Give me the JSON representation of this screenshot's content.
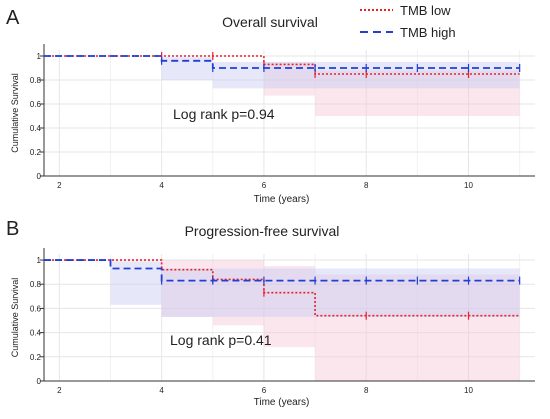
{
  "legend": {
    "entries": [
      {
        "label": "TMB low",
        "color": "#e8212b",
        "dash": "dotted"
      },
      {
        "label": "TMB high",
        "color": "#1f3fd6",
        "dash": "dashed"
      }
    ]
  },
  "colors": {
    "low": "#e8212b",
    "high": "#1f3fd6",
    "low_band": "#f4c7d4",
    "high_band": "#c7cdf5",
    "grid": "#e6e6e6",
    "axis": "#333333"
  },
  "chart_data": [
    {
      "panel": "A",
      "type": "line",
      "title": "Overall survival",
      "xlabel": "Time (years)",
      "ylabel": "Cumulative Survival",
      "xlim": [
        1.7,
        11.3
      ],
      "ylim": [
        0,
        1.05
      ],
      "xticks": [
        2,
        4,
        6,
        8,
        10
      ],
      "yticks": [
        0,
        0.2,
        0.4,
        0.6,
        0.8,
        1
      ],
      "ytick_labels": [
        "0",
        "0.2",
        "0.4",
        "0.6",
        "0.8",
        "1"
      ],
      "grid": true,
      "annotation": "Log rank p=0.94",
      "series": [
        {
          "name": "TMB low",
          "steps": [
            [
              1.7,
              1.0
            ],
            [
              6.0,
              0.93
            ],
            [
              7.0,
              0.85
            ],
            [
              11.0,
              0.85
            ]
          ],
          "censor_x": [
            4.0,
            5.0,
            6.0,
            7.0,
            8.0,
            10.0
          ],
          "ci_steps": [
            [
              1.7,
              1.0,
              1.0
            ],
            [
              6.0,
              0.67,
              0.95
            ],
            [
              7.0,
              0.5,
              0.88
            ],
            [
              11.0,
              0.5,
              0.88
            ]
          ]
        },
        {
          "name": "TMB high",
          "steps": [
            [
              1.7,
              1.0
            ],
            [
              4.0,
              0.96
            ],
            [
              5.0,
              0.9
            ],
            [
              11.0,
              0.9
            ]
          ],
          "censor_x": [
            4.0,
            5.0,
            6.0,
            7.0,
            8.0,
            9.0,
            10.0,
            11.0
          ],
          "ci_steps": [
            [
              1.7,
              1.0,
              1.0
            ],
            [
              4.0,
              0.8,
              0.99
            ],
            [
              5.0,
              0.73,
              0.95
            ],
            [
              11.0,
              0.73,
              0.95
            ]
          ]
        }
      ]
    },
    {
      "panel": "B",
      "type": "line",
      "title": "Progression-free survival",
      "xlabel": "Time (years)",
      "ylabel": "Cumulative Survival",
      "xlim": [
        1.7,
        11.3
      ],
      "ylim": [
        0,
        1.05
      ],
      "xticks": [
        2,
        4,
        6,
        8,
        10
      ],
      "yticks": [
        0,
        0.2,
        0.4,
        0.6,
        0.8,
        1
      ],
      "ytick_labels": [
        "0",
        "0.2",
        "0.4",
        "0.6",
        "0.8",
        "1"
      ],
      "grid": true,
      "annotation": "Log rank p=0.41",
      "series": [
        {
          "name": "TMB low",
          "steps": [
            [
              1.7,
              1.0
            ],
            [
              4.0,
              0.92
            ],
            [
              5.0,
              0.84
            ],
            [
              6.0,
              0.73
            ],
            [
              7.0,
              0.54
            ],
            [
              11.0,
              0.54
            ]
          ],
          "censor_x": [
            5.0,
            6.0,
            8.0,
            10.0
          ],
          "ci_steps": [
            [
              1.7,
              1.0,
              1.0
            ],
            [
              4.0,
              0.53,
              1.0
            ],
            [
              5.0,
              0.46,
              1.0
            ],
            [
              6.0,
              0.28,
              0.95
            ],
            [
              7.0,
              0.0,
              0.88
            ],
            [
              11.0,
              0.0,
              0.88
            ]
          ]
        },
        {
          "name": "TMB high",
          "steps": [
            [
              1.7,
              1.0
            ],
            [
              3.0,
              0.93
            ],
            [
              4.0,
              0.83
            ],
            [
              11.0,
              0.83
            ]
          ],
          "censor_x": [
            4.0,
            5.0,
            6.0,
            7.0,
            8.0,
            9.0,
            10.0,
            11.0
          ],
          "ci_steps": [
            [
              1.7,
              1.0,
              1.0
            ],
            [
              3.0,
              0.63,
              0.99
            ],
            [
              4.0,
              0.53,
              0.93
            ],
            [
              11.0,
              0.53,
              0.93
            ]
          ]
        }
      ]
    }
  ],
  "panels": [
    {
      "letter": "A"
    },
    {
      "letter": "B"
    }
  ]
}
